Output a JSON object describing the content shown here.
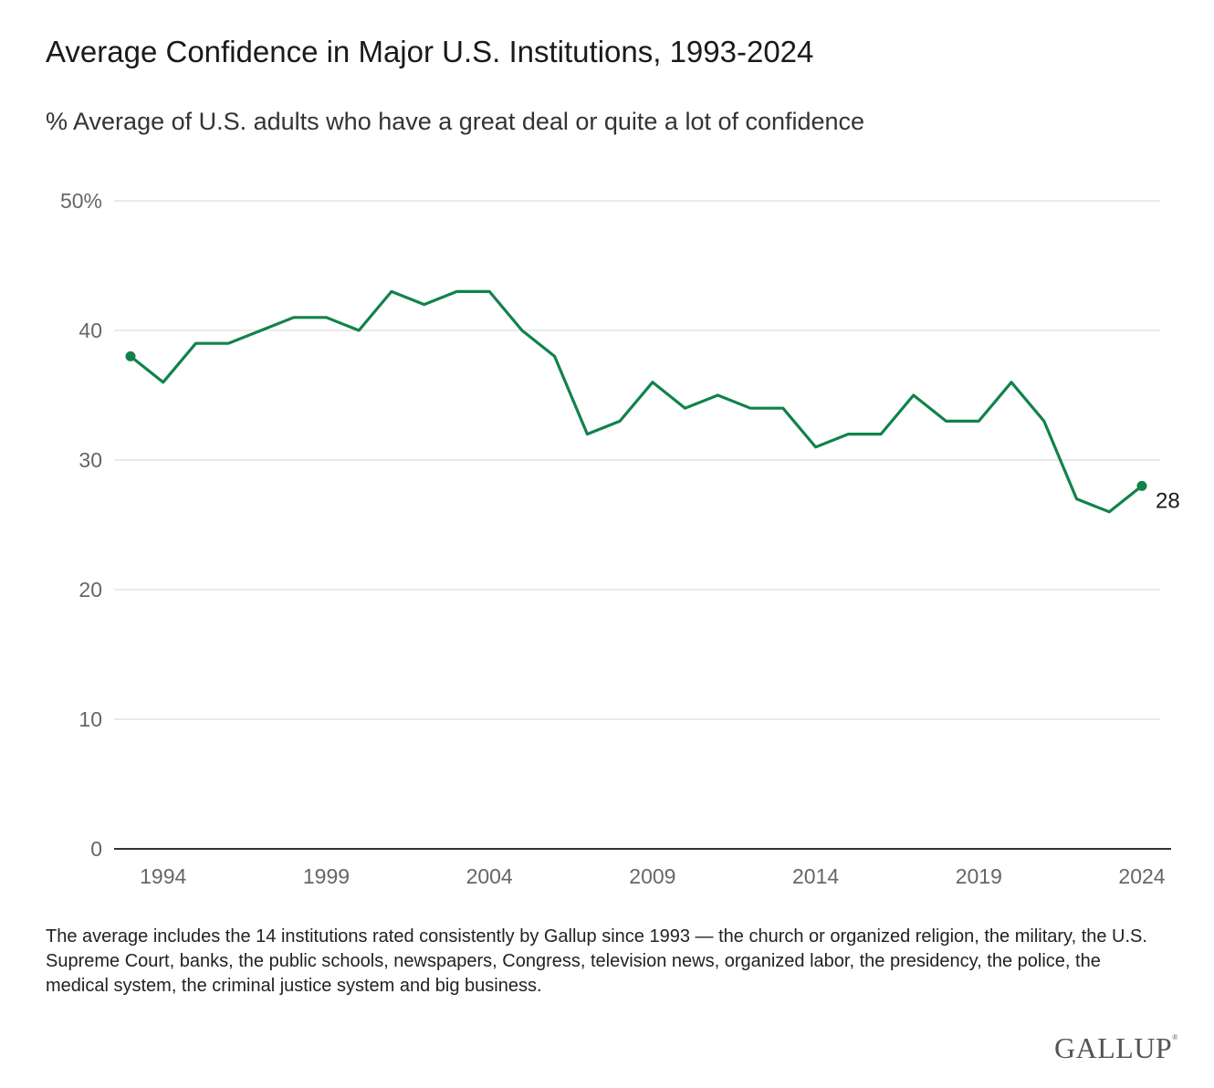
{
  "chart_data": {
    "type": "line",
    "title": "Average Confidence in Major U.S. Institutions, 1993-2024",
    "subtitle": "% Average of U.S. adults who have a great deal or quite a lot of confidence",
    "xlabel": "",
    "ylabel": "",
    "ylim": [
      0,
      50
    ],
    "xlim": [
      1993,
      2024
    ],
    "y_ticks": [
      0,
      10,
      20,
      30,
      40,
      50
    ],
    "y_tick_labels": [
      "0",
      "10",
      "20",
      "30",
      "40",
      "50%"
    ],
    "x_ticks": [
      1994,
      1999,
      2004,
      2009,
      2014,
      2019,
      2024
    ],
    "x_tick_labels": [
      "1994",
      "1999",
      "2004",
      "2009",
      "2014",
      "2019",
      "2024"
    ],
    "grid": true,
    "series": [
      {
        "color": "#10834a",
        "x": [
          1993,
          1994,
          1995,
          1996,
          1997,
          1998,
          1999,
          2000,
          2001,
          2002,
          2003,
          2004,
          2005,
          2006,
          2007,
          2008,
          2009,
          2010,
          2011,
          2012,
          2013,
          2014,
          2015,
          2016,
          2017,
          2018,
          2019,
          2020,
          2021,
          2022,
          2023,
          2024
        ],
        "values": [
          38,
          36,
          39,
          39,
          40,
          41,
          41,
          40,
          43,
          42,
          43,
          43,
          40,
          38,
          32,
          33,
          36,
          34,
          35,
          34,
          34,
          31,
          32,
          32,
          35,
          33,
          33,
          36,
          33,
          27,
          26,
          28
        ]
      }
    ],
    "end_label": "28"
  },
  "note": "The average includes the 14 institutions rated consistently by Gallup since 1993 — the church or organized religion, the military, the U.S. Supreme Court, banks, the public schools, newspapers, Congress, television news, organized labor, the presidency, the police, the medical system, the criminal justice system and big business.",
  "logo": "GALLUP"
}
